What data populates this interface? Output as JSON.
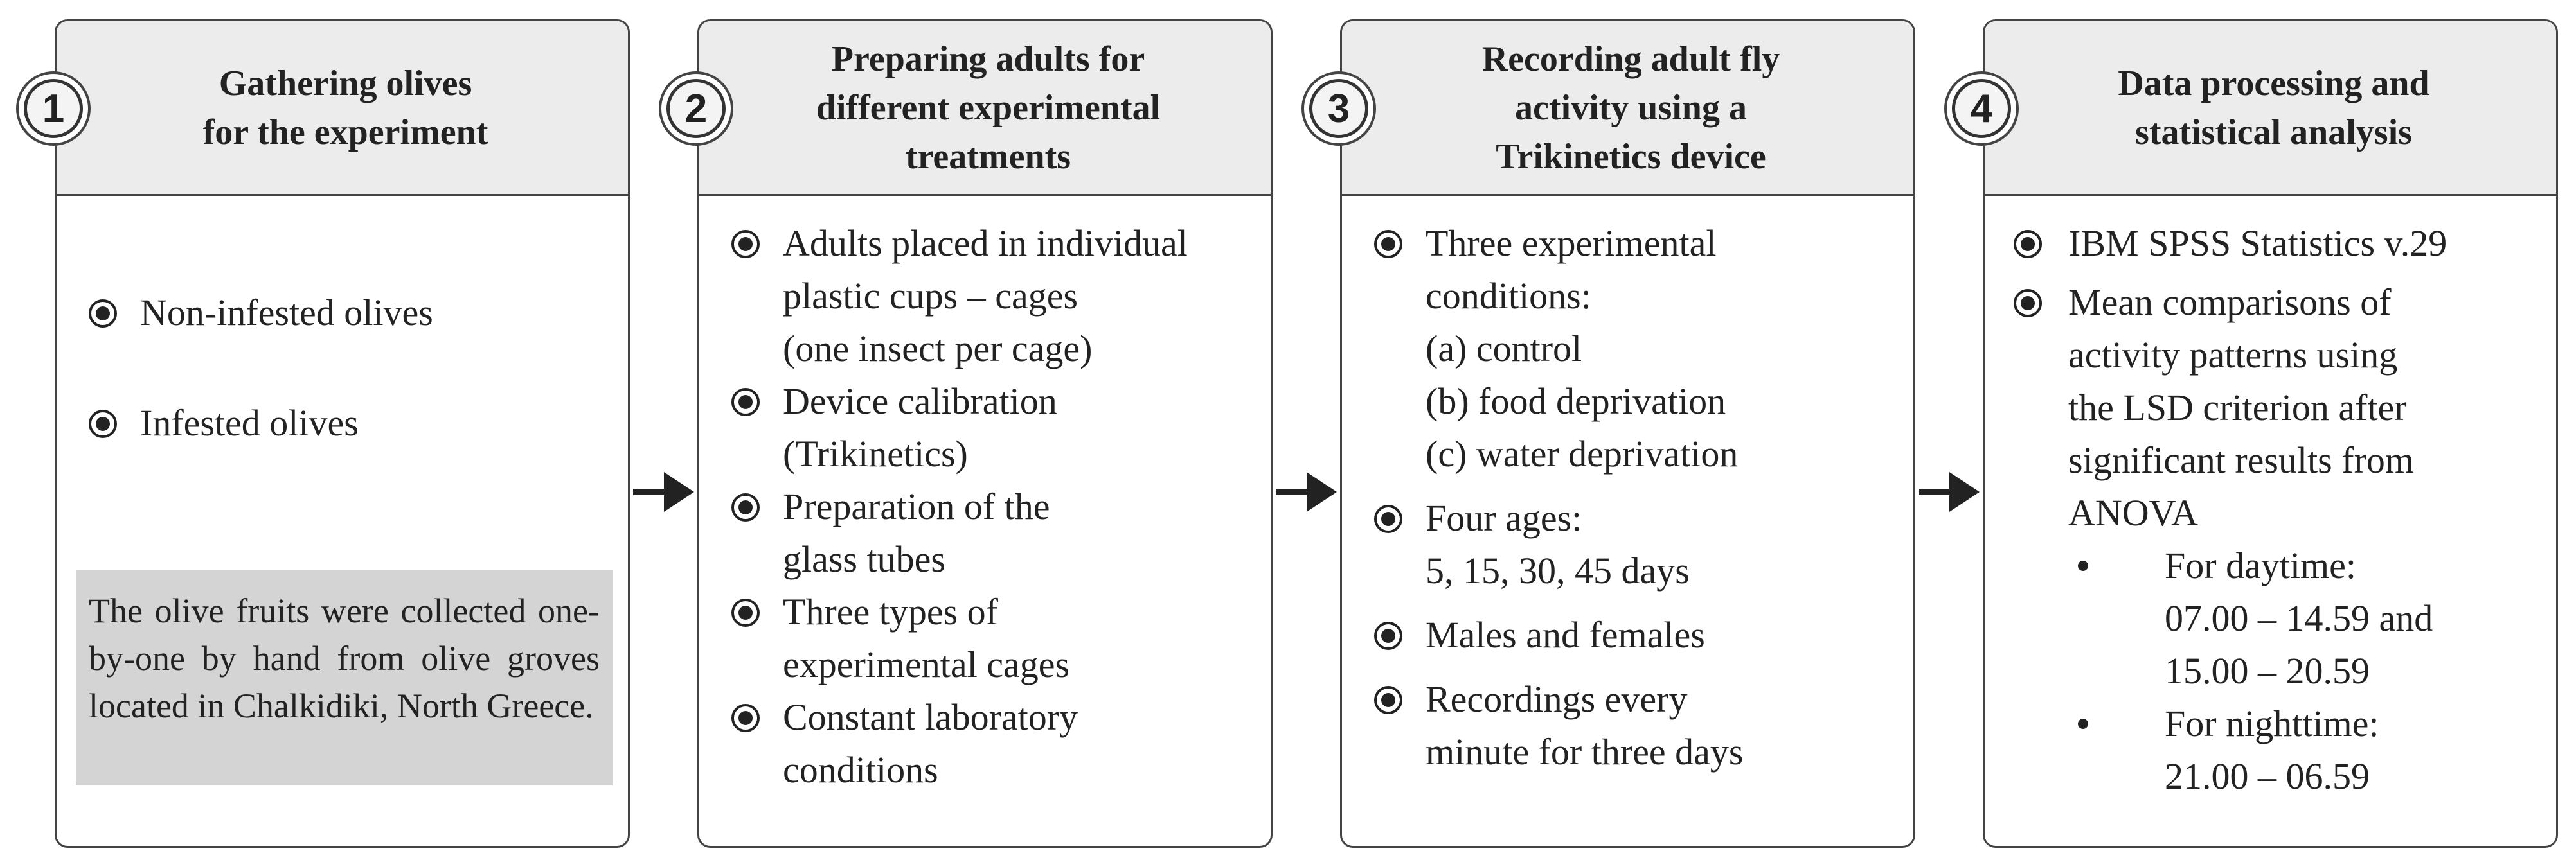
{
  "steps": [
    {
      "number": "1",
      "title": [
        "Gathering olives",
        "for the experiment"
      ],
      "items": [
        "Non-infested olives",
        "Infested olives"
      ],
      "note": "The olive fruits were collected one-by-one by hand from olive groves located in Chalkidiki, North Greece."
    },
    {
      "number": "2",
      "title": [
        "Preparing adults for",
        "different experimental",
        "treatments"
      ],
      "items": [
        [
          "Adults placed in individual",
          "plastic cups – cages",
          "(one insect per cage)"
        ],
        [
          "Device calibration",
          "(Trikinetics)"
        ],
        [
          "Preparation of the",
          "glass tubes"
        ],
        [
          "Three types of",
          "experimental cages"
        ],
        [
          "Constant laboratory",
          "conditions"
        ]
      ]
    },
    {
      "number": "3",
      "title": [
        "Recording adult fly",
        "activity using a",
        "Trikinetics device"
      ],
      "items": [
        [
          "Three experimental",
          "conditions:",
          "(a) control",
          "(b) food deprivation",
          "(c) water deprivation"
        ],
        [
          "Four ages:",
          "5, 15, 30, 45 days"
        ],
        [
          "Males and females"
        ],
        [
          "Recordings every",
          "minute for three days"
        ]
      ]
    },
    {
      "number": "4",
      "title": [
        "Data processing and",
        "statistical analysis"
      ],
      "items": [
        [
          "IBM SPSS Statistics v.29"
        ],
        [
          "Mean comparisons of",
          "activity patterns using",
          "the LSD criterion after",
          "significant results from",
          "ANOVA"
        ]
      ],
      "subitems": [
        [
          "For daytime:",
          "07.00 – 14.59 and",
          "15.00 – 20.59"
        ],
        [
          "For nighttime:",
          "21.00 – 06.59"
        ]
      ]
    }
  ],
  "colors": {
    "border": "#444444",
    "header_fill": "#ececec",
    "note_fill": "#d4d4d4",
    "text": "#222222"
  },
  "icons": {
    "bullet": "filled-circle-bullet-icon",
    "arrow": "right-arrow-icon"
  }
}
